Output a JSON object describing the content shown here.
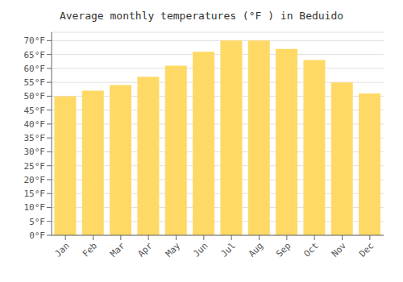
{
  "chart_data": {
    "type": "bar",
    "title": "Average monthly temperatures (°F ) in Beduido",
    "categories": [
      "Jan",
      "Feb",
      "Mar",
      "Apr",
      "May",
      "Jun",
      "Jul",
      "Aug",
      "Sep",
      "Oct",
      "Nov",
      "Dec"
    ],
    "values": [
      50,
      52,
      54,
      57,
      61,
      66,
      70,
      70,
      67,
      63,
      55,
      51
    ],
    "color": "#FFD966",
    "ylim": [
      0,
      73
    ],
    "yticks": [
      {
        "value": 0,
        "label": "0°F"
      },
      {
        "value": 5,
        "label": "5°F"
      },
      {
        "value": 10,
        "label": "10°F"
      },
      {
        "value": 15,
        "label": "15°F"
      },
      {
        "value": 20,
        "label": "20°F"
      },
      {
        "value": 25,
        "label": "25°F"
      },
      {
        "value": 30,
        "label": "30°F"
      },
      {
        "value": 35,
        "label": "35°F"
      },
      {
        "value": 40,
        "label": "40°F"
      },
      {
        "value": 45,
        "label": "45°F"
      },
      {
        "value": 50,
        "label": "50°F"
      },
      {
        "value": 55,
        "label": "55°F"
      },
      {
        "value": 60,
        "label": "60°F"
      },
      {
        "value": 65,
        "label": "65°F"
      },
      {
        "value": 70,
        "label": "70°F"
      }
    ],
    "grid": true
  }
}
